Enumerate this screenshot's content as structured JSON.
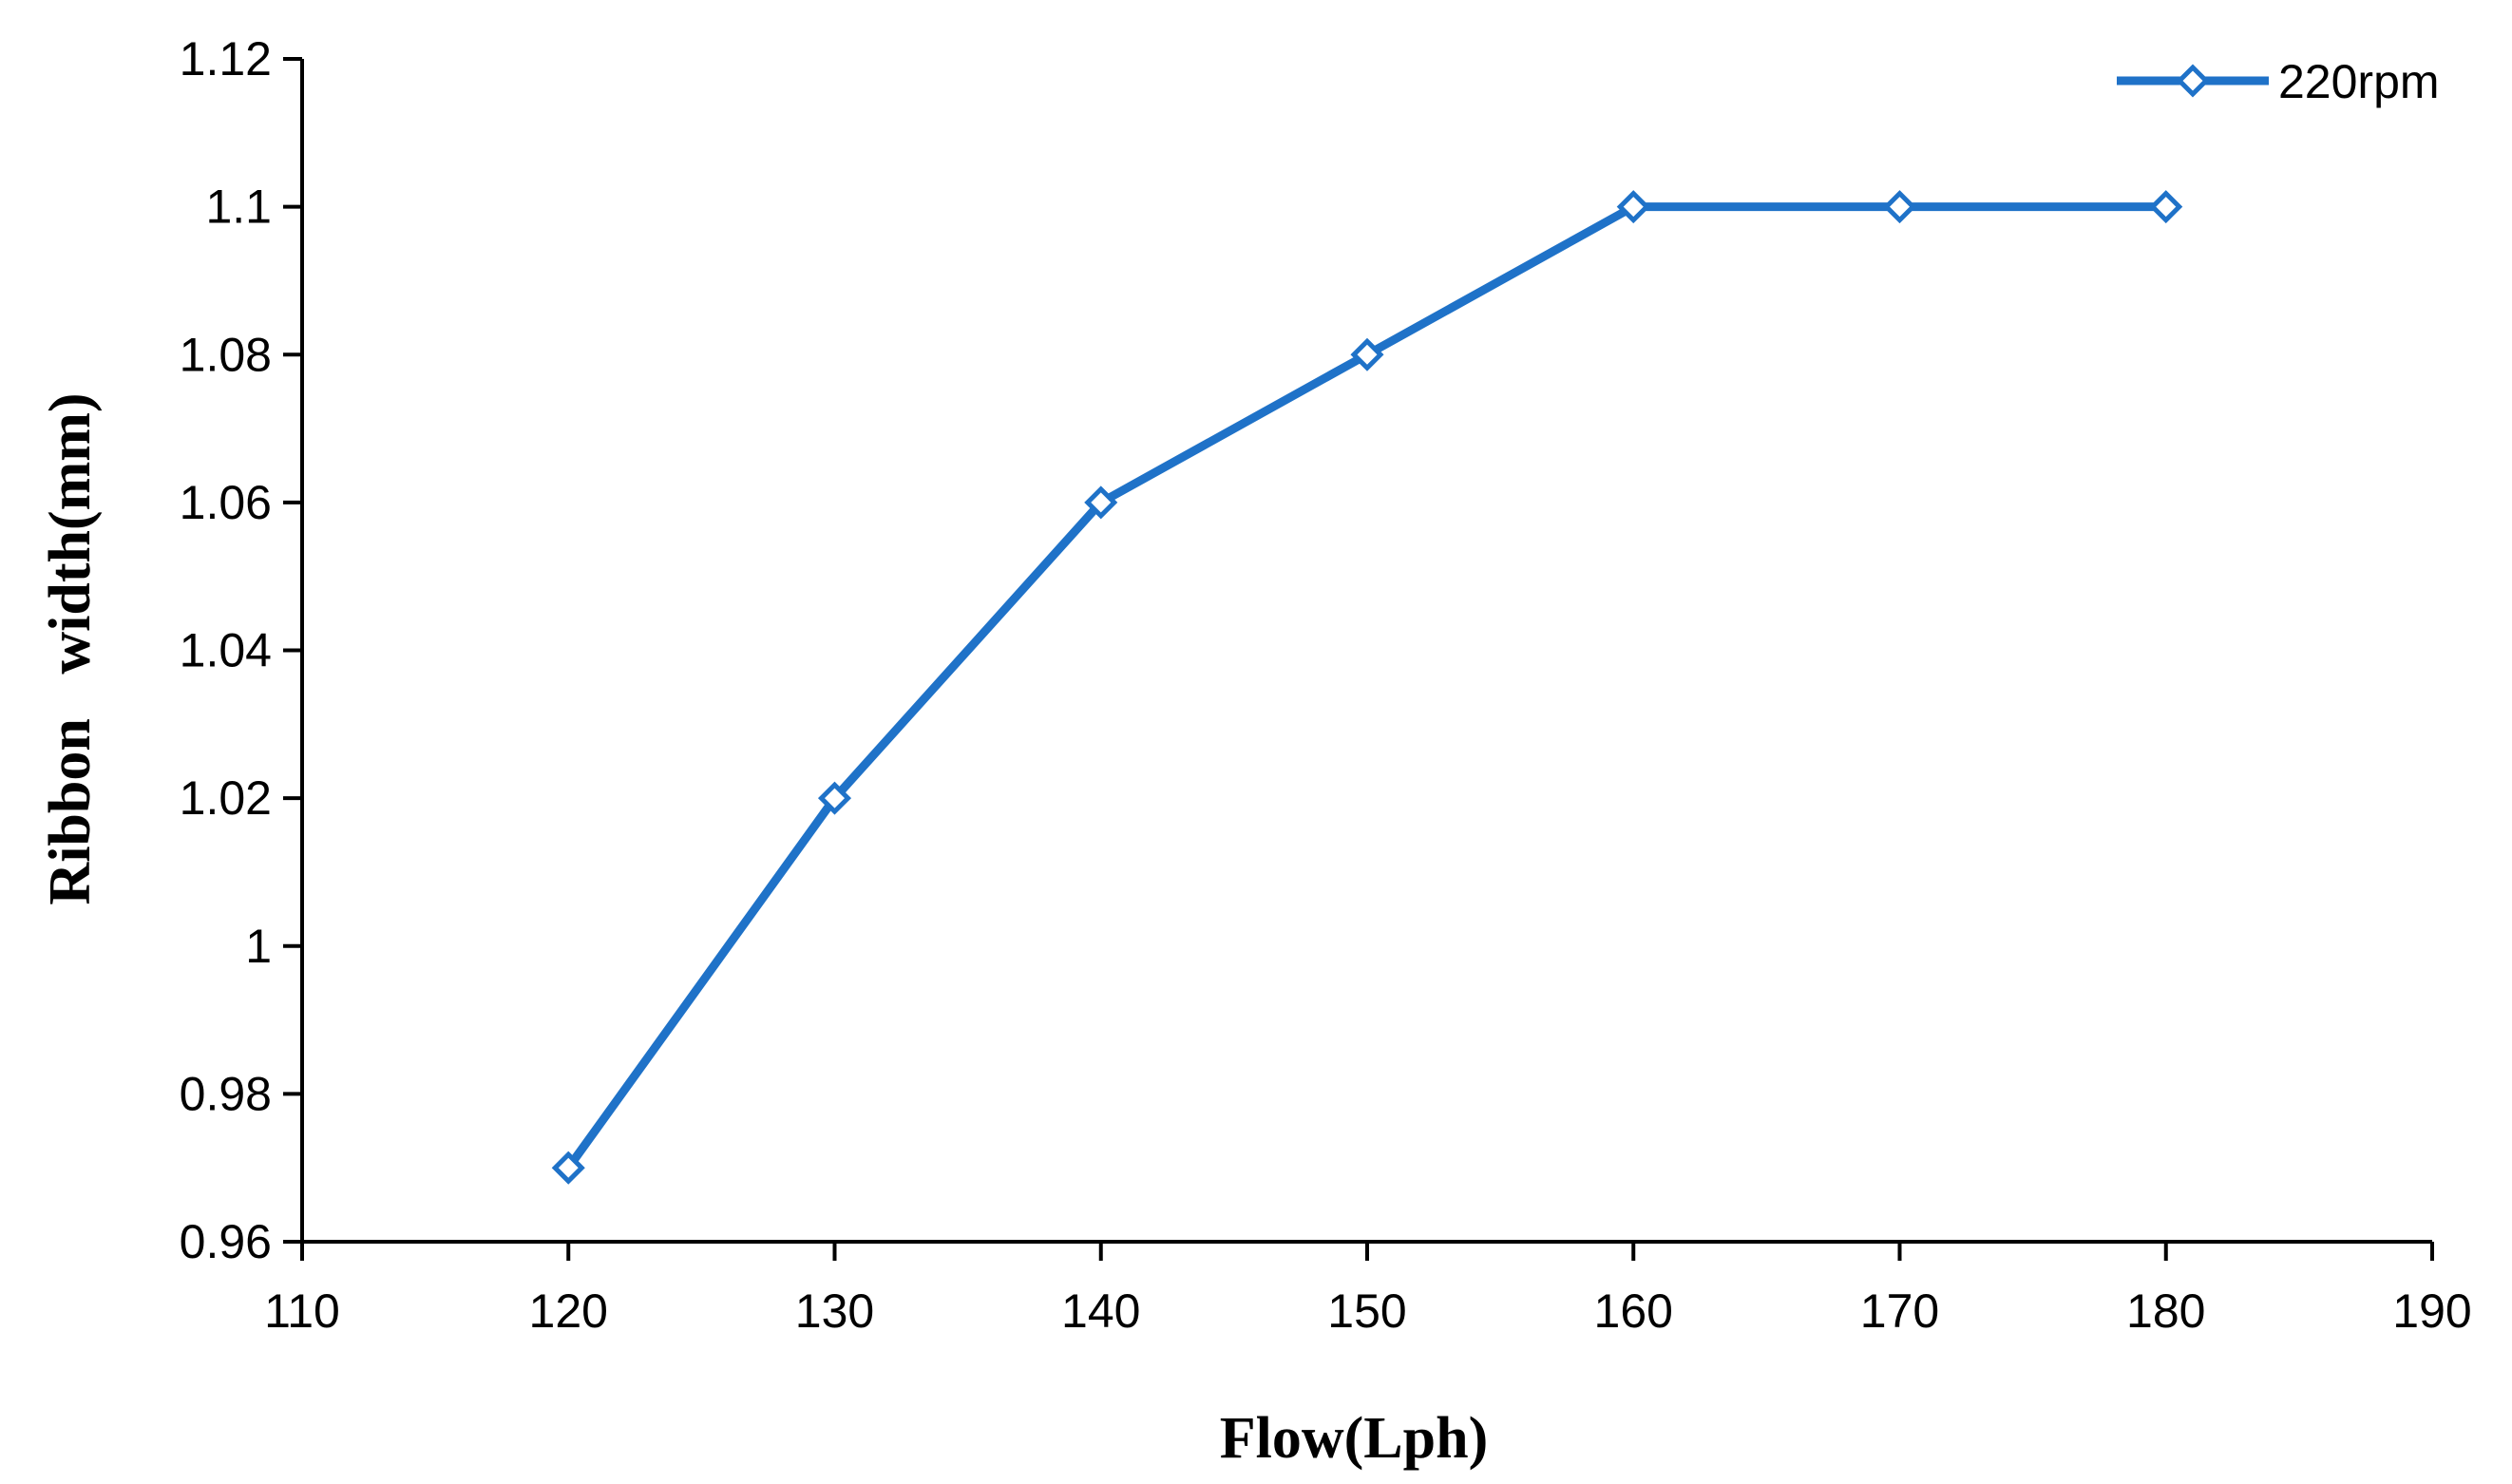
{
  "chart_data": {
    "type": "line",
    "title": "",
    "xlabel": "Flow(Lph)",
    "ylabel": "Ribbon   width(mm)",
    "xlim": [
      110,
      190
    ],
    "ylim": [
      0.96,
      1.12
    ],
    "x_ticks": [
      "110",
      "120",
      "130",
      "140",
      "150",
      "160",
      "170",
      "180",
      "190"
    ],
    "y_ticks": [
      "0.96",
      "0.98",
      "1",
      "1.02",
      "1.04",
      "1.06",
      "1.08",
      "1.1",
      "1.12"
    ],
    "grid": false,
    "legend_position": "top-right",
    "series": [
      {
        "name": "220rpm",
        "color": "#1f72c8",
        "marker": "diamond-open",
        "x": [
          120,
          130,
          140,
          150,
          160,
          170,
          180
        ],
        "y": [
          0.97,
          1.02,
          1.06,
          1.08,
          1.1,
          1.1,
          1.1
        ]
      }
    ]
  }
}
